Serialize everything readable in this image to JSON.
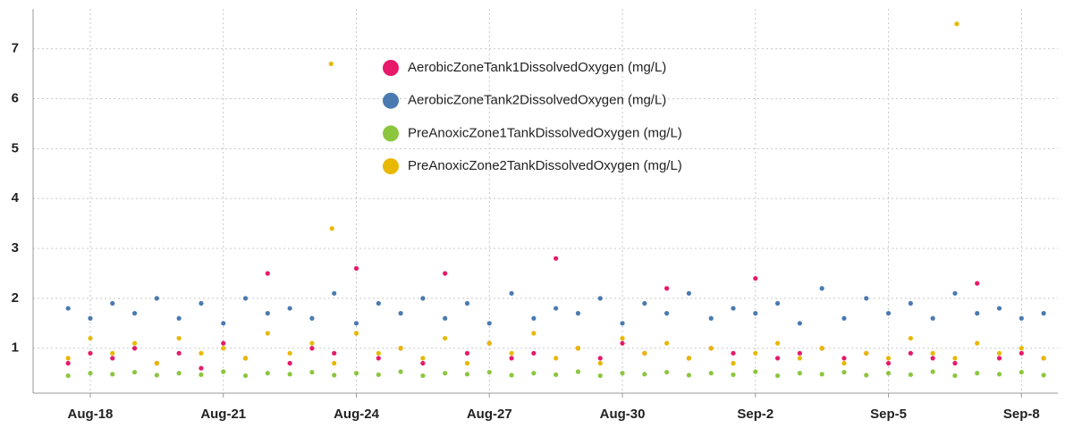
{
  "chart_data": {
    "type": "scatter",
    "x": [
      17.5,
      18,
      18.5,
      19,
      19.5,
      20,
      20.5,
      21,
      21.5,
      22,
      22.5,
      23,
      23.5,
      24,
      24.5,
      25,
      25.5,
      26,
      26.5,
      27,
      27.5,
      28,
      28.5,
      29,
      29.5,
      30,
      30.5,
      31,
      31.5,
      32,
      32.5,
      33,
      33.5,
      34,
      34.5,
      35,
      35.5,
      36,
      36.5,
      37,
      37.5,
      38,
      38.5,
      39,
      39.5,
      23.43,
      23.45,
      37.54
    ],
    "series": [
      {
        "name": "AerobicZoneTank1DissolvedOxygen (mg/L)",
        "color": "#e6196b",
        "values": [
          0.7,
          0.9,
          0.8,
          1.0,
          0.7,
          0.9,
          0.6,
          1.1,
          0.8,
          2.5,
          0.7,
          1.0,
          0.9,
          2.6,
          0.8,
          1.0,
          0.7,
          2.5,
          0.9,
          1.1,
          0.8,
          0.9,
          2.8,
          1.0,
          0.8,
          1.1,
          0.9,
          2.2,
          0.8,
          1.0,
          0.9,
          2.4,
          0.8,
          0.9,
          1.0,
          0.8,
          0.9,
          0.7,
          0.9,
          0.8,
          0.7,
          2.3,
          0.8,
          0.9,
          0.8,
          null,
          null,
          null
        ]
      },
      {
        "name": "AerobicZoneTank2DissolvedOxygen (mg/L)",
        "color": "#4a7ab0",
        "values": [
          1.8,
          1.6,
          1.9,
          1.7,
          2.0,
          1.6,
          1.9,
          1.5,
          2.0,
          1.7,
          1.8,
          1.6,
          2.1,
          1.5,
          1.9,
          1.7,
          2.0,
          1.6,
          1.9,
          1.5,
          2.1,
          1.6,
          1.8,
          1.7,
          2.0,
          1.5,
          1.9,
          1.7,
          2.1,
          1.6,
          1.8,
          1.7,
          1.9,
          1.5,
          2.2,
          1.6,
          2.0,
          1.7,
          1.9,
          1.6,
          2.1,
          1.7,
          1.8,
          1.6,
          1.7,
          null,
          null,
          null
        ]
      },
      {
        "name": "PreAnoxicZone1TankDissolvedOxygen (mg/L)",
        "color": "#8cc63f",
        "values": [
          0.45,
          0.5,
          0.48,
          0.52,
          0.46,
          0.5,
          0.47,
          0.53,
          0.45,
          0.5,
          0.48,
          0.52,
          0.46,
          0.5,
          0.47,
          0.53,
          0.45,
          0.5,
          0.48,
          0.52,
          0.46,
          0.5,
          0.47,
          0.53,
          0.45,
          0.5,
          0.48,
          0.52,
          0.46,
          0.5,
          0.47,
          0.53,
          0.45,
          0.5,
          0.48,
          0.52,
          0.46,
          0.5,
          0.47,
          0.53,
          0.45,
          0.5,
          0.48,
          0.52,
          0.46,
          null,
          null,
          null
        ]
      },
      {
        "name": "PreAnoxicZone2TankDissolvedOxygen (mg/L)",
        "color": "#e8b800",
        "values": [
          0.8,
          1.2,
          0.9,
          1.1,
          0.7,
          1.2,
          0.9,
          1.0,
          0.8,
          1.3,
          0.9,
          1.1,
          0.7,
          1.3,
          0.9,
          1.0,
          0.8,
          1.2,
          0.7,
          1.1,
          0.9,
          1.3,
          0.8,
          1.0,
          0.7,
          1.2,
          0.9,
          1.1,
          0.8,
          1.0,
          0.7,
          0.9,
          1.1,
          0.8,
          1.0,
          0.7,
          0.9,
          0.8,
          1.2,
          0.9,
          0.8,
          1.1,
          0.9,
          1.0,
          0.8,
          6.7,
          3.4,
          7.5
        ]
      }
    ],
    "xlim": [
      16.71,
      39.82
    ],
    "xticks": [
      {
        "value": 18,
        "label": "Aug-18"
      },
      {
        "value": 21,
        "label": "Aug-21"
      },
      {
        "value": 24,
        "label": "Aug-24"
      },
      {
        "value": 27,
        "label": "Aug-27"
      },
      {
        "value": 30,
        "label": "Aug-30"
      },
      {
        "value": 33,
        "label": "Sep-2"
      },
      {
        "value": 36,
        "label": "Sep-5"
      },
      {
        "value": 39,
        "label": "Sep-8"
      }
    ],
    "ylim": [
      0.1,
      7.8
    ],
    "yticks": [
      1,
      2,
      3,
      4,
      5,
      6,
      7
    ],
    "grid": true,
    "legend": "top"
  }
}
